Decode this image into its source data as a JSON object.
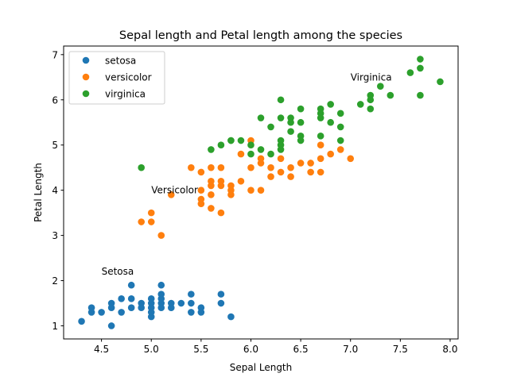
{
  "chart_data": {
    "type": "scatter",
    "title": "Sepal length and Petal length among the species",
    "xlabel": "Sepal Length",
    "ylabel": "Petal Length",
    "xlim": [
      4.12,
      8.08
    ],
    "ylim": [
      0.71,
      7.19
    ],
    "xticks": [
      4.5,
      5.0,
      5.5,
      6.0,
      6.5,
      7.0,
      7.5,
      8.0
    ],
    "xtick_labels": [
      "4.5",
      "5.0",
      "5.5",
      "6.0",
      "6.5",
      "7.0",
      "7.5",
      "8.0"
    ],
    "yticks": [
      1,
      2,
      3,
      4,
      5,
      6,
      7
    ],
    "ytick_labels": [
      "1",
      "2",
      "3",
      "4",
      "5",
      "6",
      "7"
    ],
    "grid": false,
    "legend_position": "top-left",
    "series": [
      {
        "name": "setosa",
        "color": "#1f77b4",
        "points": [
          [
            4.3,
            1.1
          ],
          [
            4.4,
            1.3
          ],
          [
            4.4,
            1.4
          ],
          [
            4.5,
            1.3
          ],
          [
            4.6,
            1.0
          ],
          [
            4.6,
            1.4
          ],
          [
            4.6,
            1.5
          ],
          [
            4.7,
            1.3
          ],
          [
            4.7,
            1.6
          ],
          [
            4.8,
            1.4
          ],
          [
            4.8,
            1.6
          ],
          [
            4.8,
            1.9
          ],
          [
            4.9,
            1.4
          ],
          [
            4.9,
            1.5
          ],
          [
            5.0,
            1.2
          ],
          [
            5.0,
            1.3
          ],
          [
            5.0,
            1.4
          ],
          [
            5.0,
            1.5
          ],
          [
            5.0,
            1.6
          ],
          [
            5.1,
            1.4
          ],
          [
            5.1,
            1.5
          ],
          [
            5.1,
            1.6
          ],
          [
            5.1,
            1.7
          ],
          [
            5.1,
            1.9
          ],
          [
            5.2,
            1.4
          ],
          [
            5.2,
            1.5
          ],
          [
            5.3,
            1.5
          ],
          [
            5.4,
            1.3
          ],
          [
            5.4,
            1.5
          ],
          [
            5.4,
            1.7
          ],
          [
            5.5,
            1.3
          ],
          [
            5.5,
            1.4
          ],
          [
            5.7,
            1.5
          ],
          [
            5.7,
            1.7
          ],
          [
            5.8,
            1.2
          ]
        ]
      },
      {
        "name": "versicolor",
        "color": "#ff7f0e",
        "points": [
          [
            4.9,
            3.3
          ],
          [
            5.0,
            3.3
          ],
          [
            5.0,
            3.5
          ],
          [
            5.1,
            3.0
          ],
          [
            5.2,
            3.9
          ],
          [
            5.4,
            4.5
          ],
          [
            5.5,
            3.7
          ],
          [
            5.5,
            3.8
          ],
          [
            5.5,
            4.0
          ],
          [
            5.5,
            4.4
          ],
          [
            5.6,
            3.6
          ],
          [
            5.6,
            3.9
          ],
          [
            5.6,
            4.1
          ],
          [
            5.6,
            4.2
          ],
          [
            5.6,
            4.5
          ],
          [
            5.7,
            3.5
          ],
          [
            5.7,
            4.1
          ],
          [
            5.7,
            4.2
          ],
          [
            5.7,
            4.5
          ],
          [
            5.8,
            3.9
          ],
          [
            5.8,
            4.0
          ],
          [
            5.8,
            4.1
          ],
          [
            5.9,
            4.2
          ],
          [
            5.9,
            4.8
          ],
          [
            6.0,
            4.0
          ],
          [
            6.0,
            4.5
          ],
          [
            6.0,
            5.1
          ],
          [
            6.1,
            4.0
          ],
          [
            6.1,
            4.6
          ],
          [
            6.1,
            4.7
          ],
          [
            6.2,
            4.3
          ],
          [
            6.2,
            4.5
          ],
          [
            6.3,
            4.4
          ],
          [
            6.3,
            4.7
          ],
          [
            6.4,
            4.3
          ],
          [
            6.4,
            4.5
          ],
          [
            6.5,
            4.6
          ],
          [
            6.6,
            4.4
          ],
          [
            6.6,
            4.6
          ],
          [
            6.7,
            4.4
          ],
          [
            6.7,
            4.7
          ],
          [
            6.7,
            5.0
          ],
          [
            6.8,
            4.8
          ],
          [
            6.9,
            4.9
          ],
          [
            7.0,
            4.7
          ]
        ]
      },
      {
        "name": "virginica",
        "color": "#2ca02c",
        "points": [
          [
            4.9,
            4.5
          ],
          [
            5.6,
            4.9
          ],
          [
            5.7,
            5.0
          ],
          [
            5.8,
            5.1
          ],
          [
            5.8,
            5.1
          ],
          [
            5.9,
            5.1
          ],
          [
            6.0,
            4.8
          ],
          [
            6.0,
            5.0
          ],
          [
            6.1,
            4.9
          ],
          [
            6.1,
            5.6
          ],
          [
            6.2,
            4.8
          ],
          [
            6.2,
            5.4
          ],
          [
            6.3,
            4.9
          ],
          [
            6.3,
            5.0
          ],
          [
            6.3,
            5.1
          ],
          [
            6.3,
            5.6
          ],
          [
            6.3,
            6.0
          ],
          [
            6.4,
            5.3
          ],
          [
            6.4,
            5.5
          ],
          [
            6.4,
            5.6
          ],
          [
            6.5,
            5.1
          ],
          [
            6.5,
            5.2
          ],
          [
            6.5,
            5.5
          ],
          [
            6.5,
            5.8
          ],
          [
            6.7,
            5.2
          ],
          [
            6.7,
            5.6
          ],
          [
            6.7,
            5.7
          ],
          [
            6.7,
            5.8
          ],
          [
            6.8,
            5.5
          ],
          [
            6.8,
            5.9
          ],
          [
            6.9,
            5.1
          ],
          [
            6.9,
            5.4
          ],
          [
            6.9,
            5.7
          ],
          [
            7.1,
            5.9
          ],
          [
            7.2,
            5.8
          ],
          [
            7.2,
            6.0
          ],
          [
            7.2,
            6.1
          ],
          [
            7.3,
            6.3
          ],
          [
            7.4,
            6.1
          ],
          [
            7.6,
            6.6
          ],
          [
            7.7,
            6.1
          ],
          [
            7.7,
            6.7
          ],
          [
            7.7,
            6.9
          ],
          [
            7.9,
            6.4
          ]
        ]
      }
    ],
    "annotations": [
      {
        "text": "Setosa",
        "x": 4.5,
        "y": 2.2
      },
      {
        "text": "Versicolor",
        "x": 5.0,
        "y": 4.0
      },
      {
        "text": "Virginica",
        "x": 7.0,
        "y": 6.5
      }
    ]
  }
}
